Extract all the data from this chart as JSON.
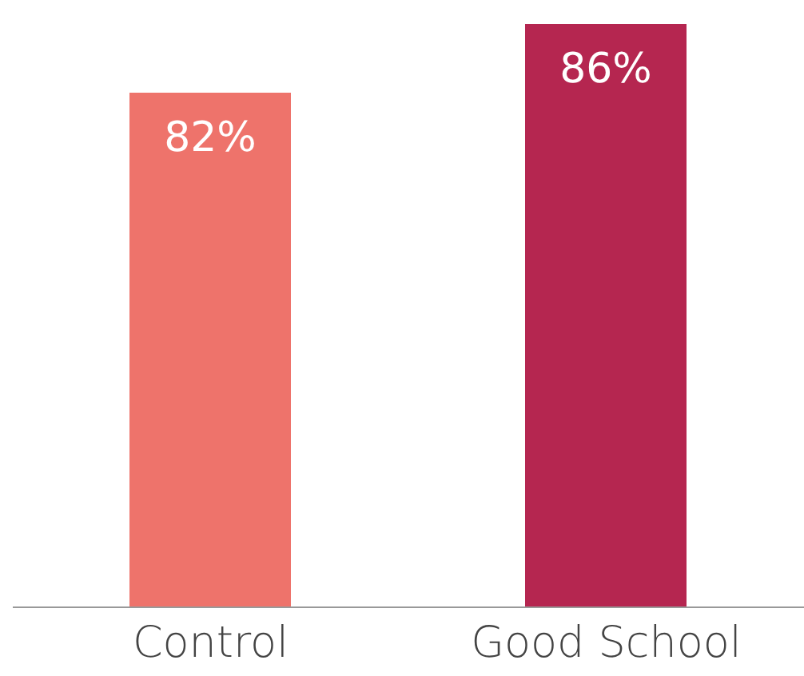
{
  "chart_data": {
    "type": "bar",
    "categories": [
      "Control",
      "Good School"
    ],
    "values": [
      82,
      86
    ],
    "colors": [
      "#ee736b",
      "#b52650"
    ],
    "value_labels": [
      "82%",
      "86%"
    ],
    "ylim": [
      52,
      86
    ]
  }
}
